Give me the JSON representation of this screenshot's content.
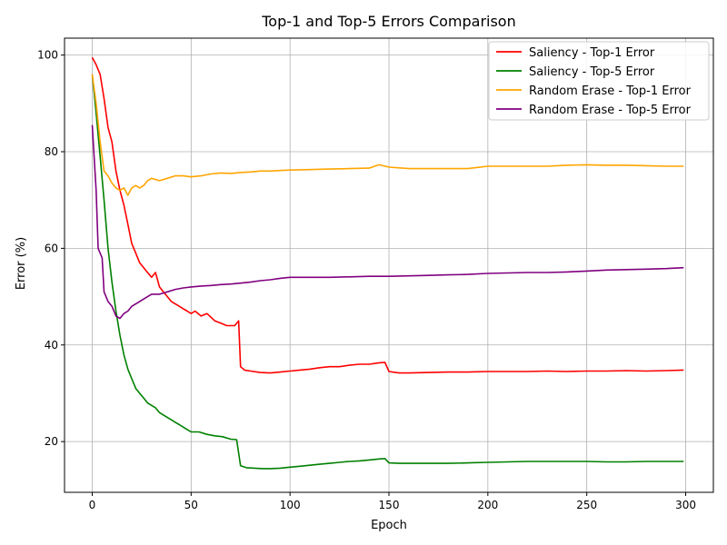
{
  "chart_data": {
    "type": "line",
    "title": "Top-1 and Top-5 Errors Comparison",
    "xlabel": "Epoch",
    "ylabel": "Error (%)",
    "xlim": [
      -14,
      314
    ],
    "ylim": [
      9.5,
      103.5
    ],
    "xticks": [
      0,
      50,
      100,
      150,
      200,
      250,
      300
    ],
    "yticks": [
      20,
      40,
      60,
      80,
      100
    ],
    "grid": true,
    "legend_position": "top-right",
    "series": [
      {
        "name": "Saliency - Top-1 Error",
        "color": "#ff0000",
        "points": [
          [
            0,
            99.5
          ],
          [
            2,
            98
          ],
          [
            4,
            96
          ],
          [
            6,
            91
          ],
          [
            8,
            85
          ],
          [
            10,
            82
          ],
          [
            12,
            76
          ],
          [
            14,
            72
          ],
          [
            16,
            69
          ],
          [
            18,
            65
          ],
          [
            20,
            61
          ],
          [
            22,
            59
          ],
          [
            24,
            57
          ],
          [
            26,
            56
          ],
          [
            28,
            55
          ],
          [
            30,
            54
          ],
          [
            32,
            55
          ],
          [
            34,
            52
          ],
          [
            36,
            51
          ],
          [
            38,
            50
          ],
          [
            40,
            49
          ],
          [
            42,
            48.5
          ],
          [
            44,
            48
          ],
          [
            46,
            47.5
          ],
          [
            48,
            47
          ],
          [
            50,
            46.5
          ],
          [
            52,
            47
          ],
          [
            55,
            46
          ],
          [
            58,
            46.5
          ],
          [
            62,
            45
          ],
          [
            65,
            44.5
          ],
          [
            68,
            44
          ],
          [
            72,
            44
          ],
          [
            74,
            45
          ],
          [
            75,
            35.5
          ],
          [
            77,
            34.8
          ],
          [
            80,
            34.6
          ],
          [
            85,
            34.3
          ],
          [
            90,
            34.2
          ],
          [
            95,
            34.4
          ],
          [
            100,
            34.6
          ],
          [
            105,
            34.8
          ],
          [
            110,
            35
          ],
          [
            115,
            35.3
          ],
          [
            120,
            35.5
          ],
          [
            125,
            35.5
          ],
          [
            130,
            35.8
          ],
          [
            135,
            36
          ],
          [
            140,
            36
          ],
          [
            145,
            36.3
          ],
          [
            148,
            36.4
          ],
          [
            150,
            34.5
          ],
          [
            155,
            34.2
          ],
          [
            160,
            34.2
          ],
          [
            170,
            34.3
          ],
          [
            180,
            34.4
          ],
          [
            190,
            34.4
          ],
          [
            200,
            34.5
          ],
          [
            210,
            34.5
          ],
          [
            220,
            34.5
          ],
          [
            230,
            34.6
          ],
          [
            240,
            34.5
          ],
          [
            250,
            34.6
          ],
          [
            260,
            34.6
          ],
          [
            270,
            34.7
          ],
          [
            280,
            34.6
          ],
          [
            290,
            34.7
          ],
          [
            299,
            34.8
          ]
        ]
      },
      {
        "name": "Saliency - Top-5 Error",
        "color": "#008000",
        "points": [
          [
            0,
            96
          ],
          [
            2,
            88
          ],
          [
            4,
            79
          ],
          [
            6,
            70
          ],
          [
            8,
            60
          ],
          [
            10,
            53
          ],
          [
            12,
            47
          ],
          [
            14,
            42
          ],
          [
            16,
            38
          ],
          [
            18,
            35
          ],
          [
            20,
            33
          ],
          [
            22,
            31
          ],
          [
            24,
            30
          ],
          [
            26,
            29
          ],
          [
            28,
            28
          ],
          [
            30,
            27.5
          ],
          [
            32,
            27
          ],
          [
            34,
            26
          ],
          [
            36,
            25.5
          ],
          [
            38,
            25
          ],
          [
            40,
            24.5
          ],
          [
            42,
            24
          ],
          [
            44,
            23.5
          ],
          [
            46,
            23
          ],
          [
            48,
            22.5
          ],
          [
            50,
            22
          ],
          [
            54,
            22
          ],
          [
            58,
            21.5
          ],
          [
            62,
            21.2
          ],
          [
            66,
            21
          ],
          [
            70,
            20.5
          ],
          [
            73,
            20.4
          ],
          [
            75,
            15
          ],
          [
            78,
            14.6
          ],
          [
            82,
            14.5
          ],
          [
            86,
            14.4
          ],
          [
            90,
            14.4
          ],
          [
            95,
            14.5
          ],
          [
            100,
            14.7
          ],
          [
            105,
            14.9
          ],
          [
            110,
            15.1
          ],
          [
            115,
            15.3
          ],
          [
            120,
            15.5
          ],
          [
            125,
            15.7
          ],
          [
            130,
            15.9
          ],
          [
            135,
            16
          ],
          [
            140,
            16.2
          ],
          [
            145,
            16.4
          ],
          [
            148,
            16.5
          ],
          [
            150,
            15.6
          ],
          [
            155,
            15.5
          ],
          [
            160,
            15.5
          ],
          [
            170,
            15.5
          ],
          [
            180,
            15.5
          ],
          [
            190,
            15.6
          ],
          [
            200,
            15.7
          ],
          [
            210,
            15.8
          ],
          [
            220,
            15.9
          ],
          [
            230,
            15.9
          ],
          [
            240,
            15.9
          ],
          [
            250,
            15.9
          ],
          [
            260,
            15.8
          ],
          [
            270,
            15.8
          ],
          [
            280,
            15.9
          ],
          [
            290,
            15.9
          ],
          [
            299,
            15.9
          ]
        ]
      },
      {
        "name": "Random Erase - Top-1 Error",
        "color": "#ffa500",
        "points": [
          [
            0,
            96
          ],
          [
            2,
            90
          ],
          [
            4,
            82
          ],
          [
            6,
            76
          ],
          [
            8,
            75
          ],
          [
            10,
            73.5
          ],
          [
            12,
            72.5
          ],
          [
            14,
            72
          ],
          [
            16,
            72.5
          ],
          [
            18,
            71
          ],
          [
            20,
            72.5
          ],
          [
            22,
            73
          ],
          [
            24,
            72.5
          ],
          [
            26,
            73
          ],
          [
            28,
            74
          ],
          [
            30,
            74.5
          ],
          [
            34,
            74
          ],
          [
            38,
            74.5
          ],
          [
            42,
            75
          ],
          [
            46,
            75
          ],
          [
            50,
            74.8
          ],
          [
            55,
            75
          ],
          [
            60,
            75.4
          ],
          [
            65,
            75.6
          ],
          [
            70,
            75.5
          ],
          [
            75,
            75.7
          ],
          [
            80,
            75.8
          ],
          [
            85,
            76
          ],
          [
            90,
            76
          ],
          [
            95,
            76.1
          ],
          [
            100,
            76.2
          ],
          [
            110,
            76.3
          ],
          [
            120,
            76.4
          ],
          [
            130,
            76.5
          ],
          [
            140,
            76.6
          ],
          [
            145,
            77.3
          ],
          [
            150,
            76.8
          ],
          [
            160,
            76.5
          ],
          [
            170,
            76.5
          ],
          [
            180,
            76.5
          ],
          [
            190,
            76.5
          ],
          [
            200,
            77
          ],
          [
            210,
            77
          ],
          [
            220,
            77
          ],
          [
            230,
            77
          ],
          [
            240,
            77.2
          ],
          [
            250,
            77.3
          ],
          [
            260,
            77.2
          ],
          [
            270,
            77.2
          ],
          [
            280,
            77.1
          ],
          [
            290,
            77
          ],
          [
            299,
            77
          ]
        ]
      },
      {
        "name": "Random Erase - Top-5 Error",
        "color": "#800080",
        "points": [
          [
            0,
            85.5
          ],
          [
            2,
            72
          ],
          [
            3,
            60
          ],
          [
            5,
            58
          ],
          [
            6,
            51
          ],
          [
            8,
            49
          ],
          [
            10,
            48
          ],
          [
            12,
            46
          ],
          [
            14,
            45.5
          ],
          [
            16,
            46.5
          ],
          [
            18,
            47
          ],
          [
            20,
            48
          ],
          [
            22,
            48.5
          ],
          [
            24,
            49
          ],
          [
            26,
            49.5
          ],
          [
            28,
            50
          ],
          [
            30,
            50.5
          ],
          [
            34,
            50.5
          ],
          [
            38,
            51
          ],
          [
            42,
            51.5
          ],
          [
            46,
            51.8
          ],
          [
            50,
            52
          ],
          [
            55,
            52.2
          ],
          [
            60,
            52.3
          ],
          [
            65,
            52.5
          ],
          [
            70,
            52.6
          ],
          [
            75,
            52.8
          ],
          [
            80,
            53
          ],
          [
            85,
            53.3
          ],
          [
            90,
            53.5
          ],
          [
            95,
            53.8
          ],
          [
            100,
            54
          ],
          [
            110,
            54
          ],
          [
            120,
            54
          ],
          [
            130,
            54.1
          ],
          [
            140,
            54.2
          ],
          [
            150,
            54.2
          ],
          [
            160,
            54.3
          ],
          [
            170,
            54.4
          ],
          [
            180,
            54.5
          ],
          [
            190,
            54.6
          ],
          [
            200,
            54.8
          ],
          [
            210,
            54.9
          ],
          [
            220,
            55
          ],
          [
            230,
            55
          ],
          [
            240,
            55.1
          ],
          [
            250,
            55.3
          ],
          [
            260,
            55.5
          ],
          [
            270,
            55.6
          ],
          [
            280,
            55.7
          ],
          [
            290,
            55.8
          ],
          [
            299,
            56
          ]
        ]
      }
    ]
  }
}
